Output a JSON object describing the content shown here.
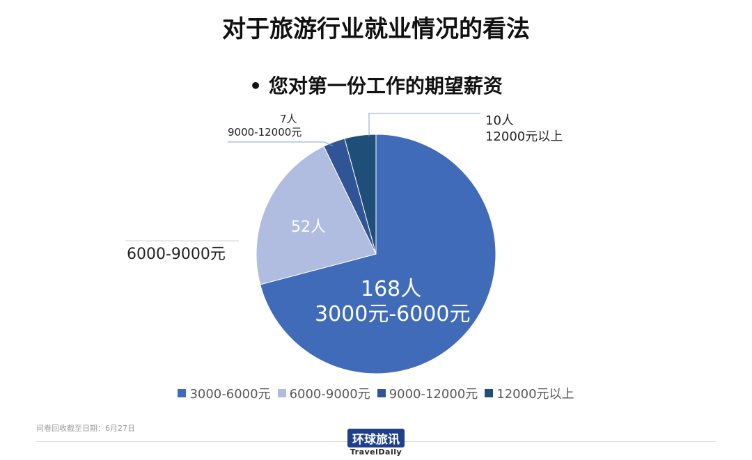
{
  "title": "对于旅游行业就业情况的看法",
  "subtitle": "• 您对第一份工作的期望薪资",
  "chart_data": {
    "type": "pie",
    "categories": [
      "3000-6000元",
      "6000-9000元",
      "9000-12000元",
      "12000元以上"
    ],
    "values": [
      168,
      52,
      7,
      10
    ],
    "colors": [
      "#3f6bb8",
      "#b1bde0",
      "#2f5597",
      "#1f4e79"
    ],
    "data_labels": [
      {
        "count": "168人",
        "category": "3000元-6000元"
      },
      {
        "count": "52人",
        "category": "6000-9000元"
      },
      {
        "count": "7人",
        "category": "9000-12000元"
      },
      {
        "count": "10人",
        "category": "12000元以上"
      }
    ],
    "legend_position": "bottom"
  },
  "footer": {
    "note": "问卷回收截至日期：6月27日",
    "logo_cn": "环球旅讯",
    "logo_en": "TravelDaily"
  }
}
